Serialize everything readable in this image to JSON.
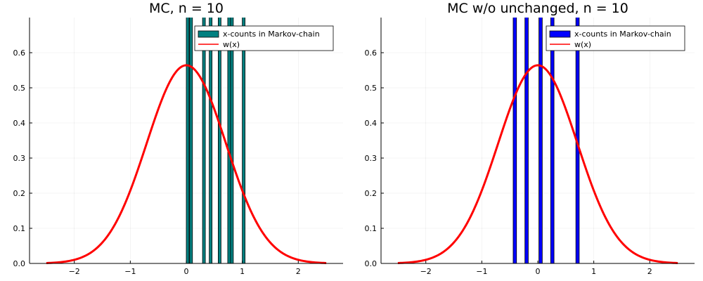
{
  "figure": {
    "panels": [
      "left",
      "right"
    ]
  },
  "chart_data": [
    {
      "type": "bar",
      "title": "MC, n = 10",
      "xlabel": "",
      "ylabel": "",
      "xlim": [
        -2.8,
        2.8
      ],
      "ylim": [
        0,
        0.7
      ],
      "xticks": [
        -2,
        -1,
        0,
        1,
        2
      ],
      "xtick_labels": [
        "−2",
        "−1",
        "0",
        "1",
        "2"
      ],
      "yticks": [
        0.0,
        0.1,
        0.2,
        0.3,
        0.4,
        0.5,
        0.6
      ],
      "ytick_labels": [
        "0.0",
        "0.1",
        "0.2",
        "0.3",
        "0.4",
        "0.5",
        "0.6"
      ],
      "grid": true,
      "legend_position": "top-right",
      "bar_color": "#008080",
      "bar_series_name": "x-counts in Markov-chain",
      "bars": [
        {
          "x": 0.0,
          "width": 0.05,
          "height": 0.75
        },
        {
          "x": 0.06,
          "width": 0.05,
          "height": 0.75
        },
        {
          "x": 0.29,
          "width": 0.05,
          "height": 0.75
        },
        {
          "x": 0.41,
          "width": 0.05,
          "height": 0.75
        },
        {
          "x": 0.57,
          "width": 0.05,
          "height": 0.75
        },
        {
          "x": 0.74,
          "width": 0.05,
          "height": 0.75
        },
        {
          "x": 0.79,
          "width": 0.05,
          "height": 0.75
        },
        {
          "x": 1.0,
          "width": 0.05,
          "height": 0.75
        }
      ],
      "series": [
        {
          "name": "w(x)",
          "color": "#ff0000",
          "function": "exp(-x^2)/sqrt(pi)",
          "x_range": [
            -2.5,
            2.5
          ]
        }
      ]
    },
    {
      "type": "bar",
      "title": "MC w/o unchanged, n = 10",
      "xlabel": "",
      "ylabel": "",
      "xlim": [
        -2.8,
        2.8
      ],
      "ylim": [
        0,
        0.7
      ],
      "xticks": [
        -2,
        -1,
        0,
        1,
        2
      ],
      "xtick_labels": [
        "−2",
        "−1",
        "0",
        "1",
        "2"
      ],
      "yticks": [
        0.0,
        0.1,
        0.2,
        0.3,
        0.4,
        0.5,
        0.6
      ],
      "ytick_labels": [
        "0.0",
        "0.1",
        "0.2",
        "0.3",
        "0.4",
        "0.5",
        "0.6"
      ],
      "grid": true,
      "legend_position": "top-right",
      "bar_color": "#0000ff",
      "bar_series_name": "x-counts in Markov-chain",
      "bars": [
        {
          "x": -0.44,
          "width": 0.06,
          "height": 0.75
        },
        {
          "x": -0.23,
          "width": 0.06,
          "height": 0.75
        },
        {
          "x": 0.02,
          "width": 0.06,
          "height": 0.75
        },
        {
          "x": 0.23,
          "width": 0.06,
          "height": 0.75
        },
        {
          "x": 0.68,
          "width": 0.06,
          "height": 0.75
        }
      ],
      "series": [
        {
          "name": "w(x)",
          "color": "#ff0000",
          "function": "exp(-x^2)/sqrt(pi)",
          "x_range": [
            -2.5,
            2.5
          ]
        }
      ]
    }
  ]
}
